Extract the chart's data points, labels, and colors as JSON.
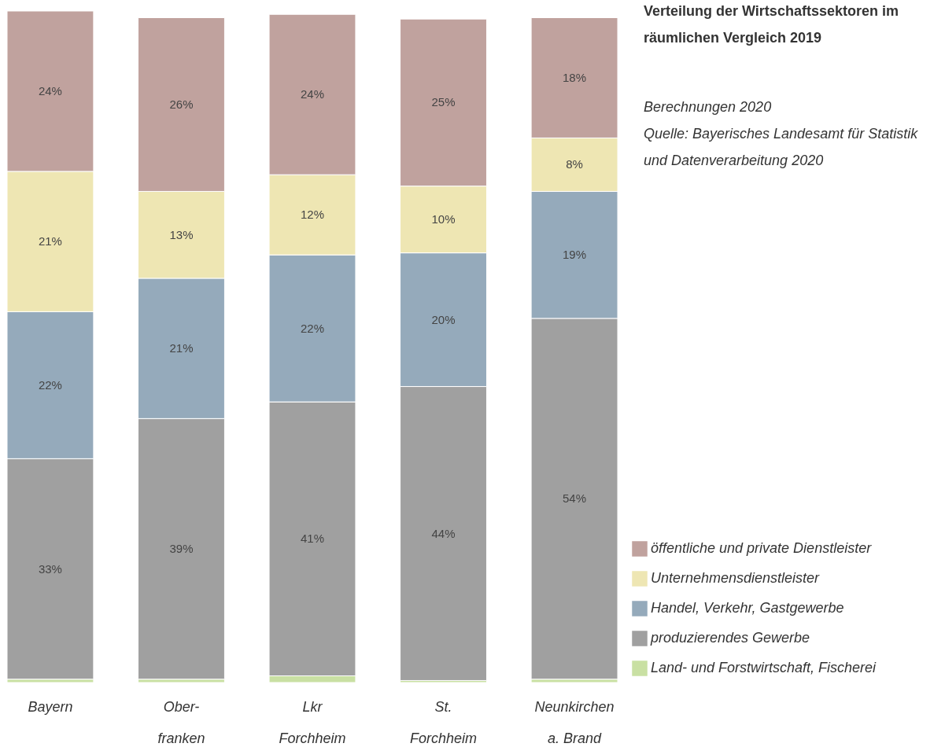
{
  "chart_data": {
    "type": "bar",
    "stacked": true,
    "title": "Verteilung der Wirtschaftssektoren im\nräumlichen Vergleich 2019",
    "annotations": [
      "Berechnungen 2020",
      "Quelle: Bayerisches Landesamt für Statistik\nund Datenverarbeitung 2020"
    ],
    "categories": [
      "Bayern",
      "Ober-\nfranken",
      "Lkr\nForchheim",
      "St.\nForchheim",
      "Neunkirchen\na. Brand"
    ],
    "series": [
      {
        "name": "Land- und Forstwirtschaft, Fischerei",
        "color": "#c9e0a3",
        "values": [
          0.5,
          0.5,
          1,
          0.3,
          0.5
        ],
        "value_labels": [
          null,
          null,
          null,
          null,
          null
        ]
      },
      {
        "name": "produzierendes Gewerbe",
        "color": "#a0a0a0",
        "values": [
          33,
          39,
          41,
          44,
          54
        ],
        "value_labels": [
          "33%",
          "39%",
          "41%",
          "44%",
          "54%"
        ]
      },
      {
        "name": "Handel, Verkehr, Gastgewerbe",
        "color": "#95aabb",
        "values": [
          22,
          21,
          22,
          20,
          19
        ],
        "value_labels": [
          "22%",
          "21%",
          "22%",
          "20%",
          "19%"
        ]
      },
      {
        "name": "Unternehmensdienstleister",
        "color": "#eee6b3",
        "values": [
          21,
          13,
          12,
          10,
          8
        ],
        "value_labels": [
          "21%",
          "13%",
          "12%",
          "10%",
          "8%"
        ]
      },
      {
        "name": "öffentliche und private Dienstleister",
        "color": "#c0a29e",
        "values": [
          24,
          26,
          24,
          25,
          18
        ],
        "value_labels": [
          "24%",
          "26%",
          "24%",
          "25%",
          "18%"
        ]
      }
    ],
    "legend": "bottom right"
  }
}
